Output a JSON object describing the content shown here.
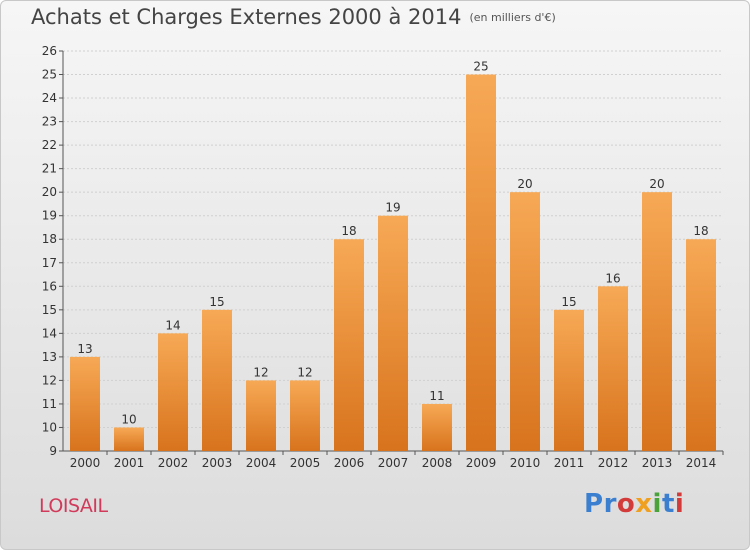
{
  "title": "Achats et Charges Externes 2000 à 2014",
  "unit": "(en milliers d'€)",
  "place": "LOISAIL",
  "logo": {
    "letters": [
      "P",
      "r",
      "o",
      "x",
      "i",
      "t",
      "i"
    ],
    "colors": [
      "#3a7fd0",
      "#3a7fd0",
      "#d33a3a",
      "#f0a020",
      "#4aa23a",
      "#3a7fd0",
      "#d33a3a"
    ]
  },
  "colors": {
    "bar_top": "#f7a955",
    "bar_bottom": "#d8731d",
    "grid": "#d0d0d0",
    "axis": "#555555"
  },
  "chart_data": {
    "type": "bar",
    "categories": [
      "2000",
      "2001",
      "2002",
      "2003",
      "2004",
      "2005",
      "2006",
      "2007",
      "2008",
      "2009",
      "2010",
      "2011",
      "2012",
      "2013",
      "2014"
    ],
    "values": [
      13,
      10,
      14,
      15,
      12,
      12,
      18,
      19,
      11,
      25,
      20,
      15,
      16,
      20,
      18
    ],
    "ylim": [
      9,
      26
    ],
    "yticks": [
      9,
      10,
      11,
      12,
      13,
      14,
      15,
      16,
      17,
      18,
      19,
      20,
      21,
      22,
      23,
      24,
      25,
      26
    ],
    "grid": true
  }
}
